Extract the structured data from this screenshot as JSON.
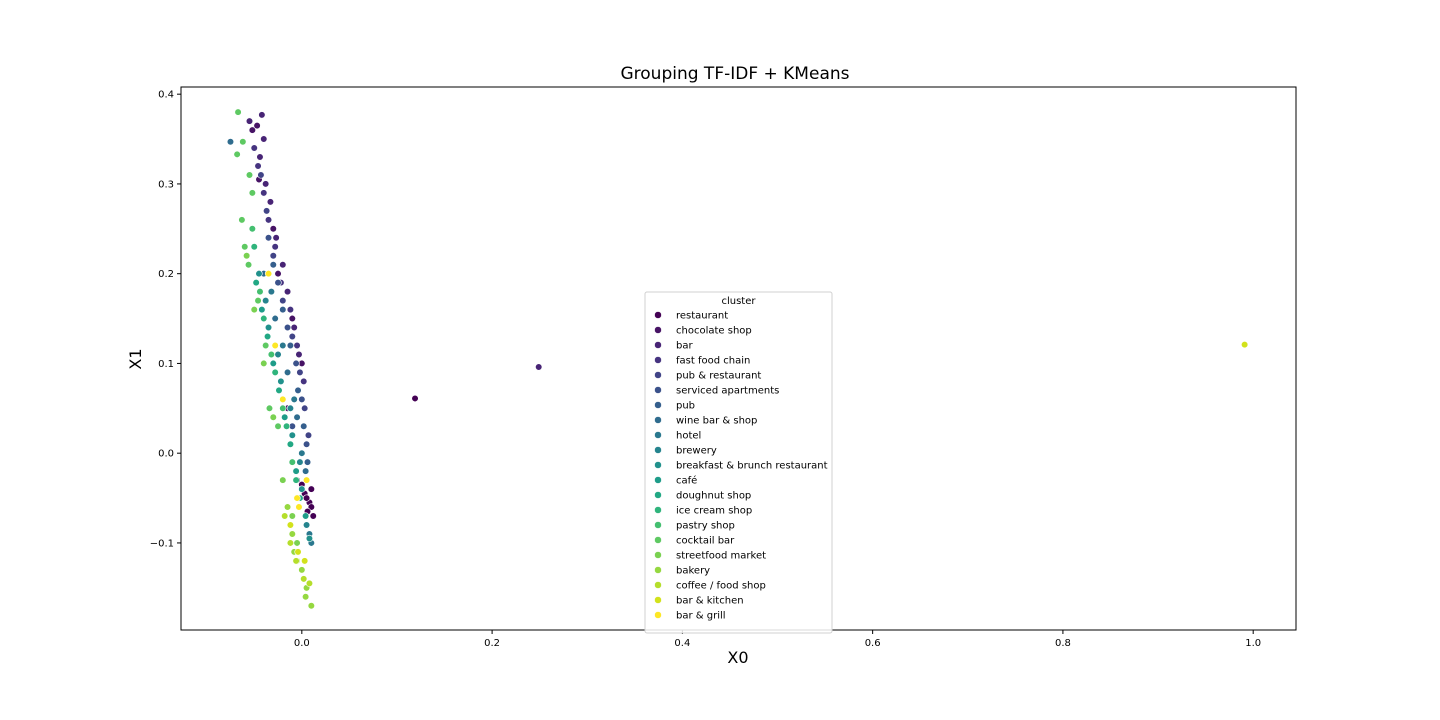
{
  "chart_data": {
    "type": "scatter",
    "title": "Grouping TF-IDF + KMeans",
    "xlabel": "X0",
    "ylabel": "X1",
    "xlim": [
      -0.127,
      1.045
    ],
    "ylim": [
      -0.197,
      0.408
    ],
    "xticks": [
      0.0,
      0.2,
      0.4,
      0.6,
      0.8,
      1.0
    ],
    "xtick_labels": [
      "0.0",
      "0.2",
      "0.4",
      "0.6",
      "0.8",
      "1.0"
    ],
    "yticks": [
      -0.1,
      0.0,
      0.1,
      0.2,
      0.3,
      0.4
    ],
    "ytick_labels": [
      "−0.1",
      "0.0",
      "0.1",
      "0.2",
      "0.3",
      "0.4"
    ],
    "grid": false,
    "legend": {
      "title": "cluster",
      "placement": "center"
    },
    "series": [
      {
        "name": "restaurant",
        "color": "#440154",
        "points": [
          [
            -0.005,
            -0.03
          ],
          [
            0.003,
            -0.045
          ],
          [
            0.008,
            -0.055
          ],
          [
            0.01,
            -0.06
          ],
          [
            0.012,
            -0.07
          ],
          [
            0.005,
            -0.05
          ],
          [
            0.0,
            -0.035
          ],
          [
            0.01,
            -0.04
          ],
          [
            0.006,
            -0.065
          ],
          [
            0.119,
            0.061
          ]
        ]
      },
      {
        "name": "chocolate shop",
        "color": "#471365",
        "points": [
          [
            -0.052,
            0.36
          ],
          [
            -0.047,
            0.365
          ],
          [
            -0.045,
            0.305
          ],
          [
            -0.03,
            0.25
          ],
          [
            -0.025,
            0.2
          ],
          [
            -0.01,
            0.15
          ],
          [
            0.0,
            0.1
          ],
          [
            -0.015,
            0.05
          ]
        ]
      },
      {
        "name": "bar",
        "color": "#482475",
        "points": [
          [
            -0.042,
            0.377
          ],
          [
            -0.055,
            0.37
          ],
          [
            -0.04,
            0.35
          ],
          [
            -0.044,
            0.33
          ],
          [
            -0.038,
            0.3
          ],
          [
            -0.033,
            0.28
          ],
          [
            -0.027,
            0.24
          ],
          [
            -0.02,
            0.21
          ],
          [
            -0.015,
            0.18
          ],
          [
            -0.008,
            0.14
          ],
          [
            -0.003,
            0.11
          ],
          [
            0.249,
            0.096
          ]
        ]
      },
      {
        "name": "fast food chain",
        "color": "#463480",
        "points": [
          [
            -0.05,
            0.34
          ],
          [
            -0.046,
            0.32
          ],
          [
            -0.04,
            0.29
          ],
          [
            -0.035,
            0.26
          ],
          [
            -0.028,
            0.23
          ],
          [
            -0.022,
            0.19
          ],
          [
            -0.012,
            0.16
          ],
          [
            -0.005,
            0.12
          ],
          [
            0.002,
            0.08
          ]
        ]
      },
      {
        "name": "pub & restaurant",
        "color": "#414487",
        "points": [
          [
            -0.043,
            0.31
          ],
          [
            -0.037,
            0.27
          ],
          [
            -0.03,
            0.22
          ],
          [
            -0.02,
            0.17
          ],
          [
            -0.01,
            0.13
          ],
          [
            -0.002,
            0.09
          ],
          [
            0.003,
            0.05
          ],
          [
            0.007,
            0.02
          ]
        ]
      },
      {
        "name": "serviced apartments",
        "color": "#3b528b",
        "points": [
          [
            -0.035,
            0.24
          ],
          [
            -0.025,
            0.19
          ],
          [
            -0.015,
            0.14
          ],
          [
            -0.006,
            0.1
          ],
          [
            0.0,
            0.06
          ],
          [
            0.005,
            0.01
          ],
          [
            -0.01,
            0.03
          ]
        ]
      },
      {
        "name": "pub",
        "color": "#355f8d",
        "points": [
          [
            -0.03,
            0.21
          ],
          [
            -0.02,
            0.16
          ],
          [
            -0.012,
            0.12
          ],
          [
            -0.004,
            0.07
          ],
          [
            0.002,
            0.03
          ],
          [
            0.006,
            -0.01
          ]
        ]
      },
      {
        "name": "wine bar & shop",
        "color": "#2f6c8e",
        "points": [
          [
            -0.075,
            0.347
          ],
          [
            -0.04,
            0.2
          ],
          [
            -0.028,
            0.15
          ],
          [
            -0.015,
            0.09
          ],
          [
            -0.005,
            0.04
          ],
          [
            0.004,
            -0.02
          ]
        ]
      },
      {
        "name": "hotel",
        "color": "#2a788e",
        "points": [
          [
            -0.032,
            0.18
          ],
          [
            -0.02,
            0.12
          ],
          [
            -0.008,
            0.06
          ],
          [
            0.0,
            0.0
          ],
          [
            0.008,
            -0.09
          ],
          [
            0.01,
            -0.1
          ]
        ]
      },
      {
        "name": "brewery",
        "color": "#25848e",
        "points": [
          [
            -0.038,
            0.17
          ],
          [
            -0.025,
            0.11
          ],
          [
            -0.012,
            0.05
          ],
          [
            -0.002,
            -0.01
          ],
          [
            0.005,
            -0.08
          ]
        ]
      },
      {
        "name": "breakfast & brunch restaurant",
        "color": "#21918c",
        "points": [
          [
            -0.045,
            0.2
          ],
          [
            -0.035,
            0.14
          ],
          [
            -0.022,
            0.08
          ],
          [
            -0.01,
            0.02
          ],
          [
            0.0,
            -0.04
          ],
          [
            0.008,
            -0.095
          ]
        ]
      },
      {
        "name": "café",
        "color": "#1e9c89",
        "points": [
          [
            -0.042,
            0.16
          ],
          [
            -0.03,
            0.1
          ],
          [
            -0.018,
            0.04
          ],
          [
            -0.006,
            -0.02
          ],
          [
            0.004,
            -0.07
          ]
        ]
      },
      {
        "name": "doughnut shop",
        "color": "#22a884",
        "points": [
          [
            -0.048,
            0.19
          ],
          [
            -0.036,
            0.13
          ],
          [
            -0.024,
            0.07
          ],
          [
            -0.012,
            0.01
          ],
          [
            -0.002,
            -0.05
          ]
        ]
      },
      {
        "name": "ice cream shop",
        "color": "#2fb47c",
        "points": [
          [
            -0.05,
            0.23
          ],
          [
            -0.04,
            0.15
          ],
          [
            -0.028,
            0.09
          ],
          [
            -0.016,
            0.03
          ],
          [
            -0.006,
            -0.03
          ]
        ]
      },
      {
        "name": "pastry shop",
        "color": "#44bf70",
        "points": [
          [
            -0.052,
            0.25
          ],
          [
            -0.044,
            0.18
          ],
          [
            -0.032,
            0.11
          ],
          [
            -0.02,
            0.05
          ],
          [
            -0.01,
            -0.01
          ]
        ]
      },
      {
        "name": "cocktail bar",
        "color": "#5ec962",
        "points": [
          [
            -0.067,
            0.38
          ],
          [
            -0.062,
            0.347
          ],
          [
            -0.068,
            0.333
          ],
          [
            -0.055,
            0.31
          ],
          [
            -0.052,
            0.29
          ],
          [
            -0.063,
            0.26
          ],
          [
            -0.06,
            0.23
          ],
          [
            -0.056,
            0.21
          ],
          [
            -0.046,
            0.17
          ],
          [
            -0.038,
            0.12
          ],
          [
            -0.034,
            0.05
          ],
          [
            -0.025,
            0.03
          ]
        ]
      },
      {
        "name": "streetfood market",
        "color": "#7ad151",
        "points": [
          [
            -0.058,
            0.22
          ],
          [
            -0.05,
            0.16
          ],
          [
            -0.04,
            0.1
          ],
          [
            -0.03,
            0.04
          ],
          [
            -0.02,
            -0.03
          ],
          [
            -0.01,
            -0.07
          ],
          [
            -0.005,
            -0.1
          ]
        ]
      },
      {
        "name": "bakery",
        "color": "#95d840",
        "points": [
          [
            -0.015,
            -0.06
          ],
          [
            -0.01,
            -0.09
          ],
          [
            -0.005,
            -0.12
          ],
          [
            0.0,
            -0.13
          ],
          [
            0.005,
            -0.15
          ],
          [
            0.01,
            -0.17
          ],
          [
            -0.008,
            -0.11
          ],
          [
            0.004,
            -0.16
          ]
        ]
      },
      {
        "name": "coffee / food shop",
        "color": "#b5de2b",
        "points": [
          [
            -0.018,
            -0.07
          ],
          [
            -0.012,
            -0.1
          ],
          [
            -0.006,
            -0.12
          ],
          [
            0.002,
            -0.14
          ],
          [
            0.008,
            -0.145
          ]
        ]
      },
      {
        "name": "bar & kitchen",
        "color": "#d2e21b",
        "points": [
          [
            -0.012,
            -0.08
          ],
          [
            -0.004,
            -0.11
          ],
          [
            0.003,
            -0.12
          ],
          [
            0.991,
            0.121
          ]
        ]
      },
      {
        "name": "bar & grill",
        "color": "#fde725",
        "points": [
          [
            -0.035,
            0.2
          ],
          [
            -0.028,
            0.12
          ],
          [
            -0.02,
            0.06
          ],
          [
            -0.005,
            -0.05
          ],
          [
            0.005,
            -0.03
          ],
          [
            -0.003,
            -0.06
          ]
        ]
      }
    ]
  }
}
